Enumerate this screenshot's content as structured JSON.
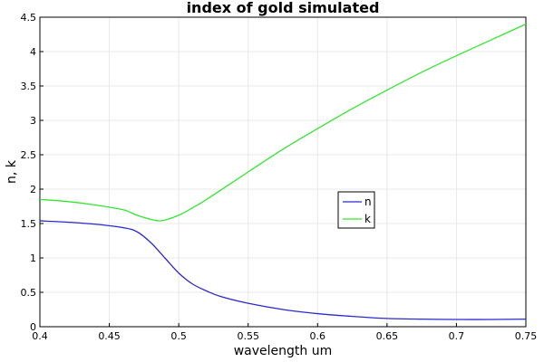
{
  "chart_data": {
    "type": "line",
    "title": "index of gold simulated",
    "xlabel": "wavelength um",
    "ylabel": "n, k",
    "xlim": [
      0.4,
      0.75
    ],
    "ylim": [
      0,
      4.5
    ],
    "grid": true,
    "legend_position": "center-right",
    "x_ticks": [
      0.4,
      0.45,
      0.5,
      0.55,
      0.6,
      0.65,
      0.7,
      0.75
    ],
    "x_tick_labels": [
      "0.4",
      "0.45",
      "0.5",
      "0.55",
      "0.6",
      "0.65",
      "0.7",
      "0.75"
    ],
    "y_ticks": [
      0,
      0.5,
      1,
      1.5,
      2,
      2.5,
      3,
      3.5,
      4,
      4.5
    ],
    "y_tick_labels": [
      "0",
      "0.5",
      "1",
      "1.5",
      "2",
      "2.5",
      "3",
      "3.5",
      "4",
      "4.5"
    ],
    "series": [
      {
        "name": "n",
        "color": "#2b2bcc",
        "x": [
          0.4,
          0.42,
          0.44,
          0.46,
          0.47,
          0.48,
          0.49,
          0.5,
          0.51,
          0.52,
          0.53,
          0.55,
          0.575,
          0.6,
          0.625,
          0.65,
          0.675,
          0.7,
          0.725,
          0.75
        ],
        "y": [
          1.54,
          1.52,
          1.49,
          1.44,
          1.38,
          1.22,
          1.0,
          0.78,
          0.62,
          0.52,
          0.44,
          0.34,
          0.25,
          0.19,
          0.15,
          0.12,
          0.11,
          0.105,
          0.105,
          0.11
        ]
      },
      {
        "name": "k",
        "color": "#33e633",
        "x": [
          0.4,
          0.42,
          0.44,
          0.46,
          0.47,
          0.48,
          0.485,
          0.49,
          0.5,
          0.51,
          0.52,
          0.55,
          0.575,
          0.6,
          0.625,
          0.65,
          0.675,
          0.7,
          0.725,
          0.75
        ],
        "y": [
          1.85,
          1.82,
          1.77,
          1.7,
          1.62,
          1.56,
          1.54,
          1.55,
          1.62,
          1.73,
          1.85,
          2.25,
          2.58,
          2.88,
          3.17,
          3.44,
          3.7,
          3.94,
          4.17,
          4.4
        ]
      }
    ]
  }
}
